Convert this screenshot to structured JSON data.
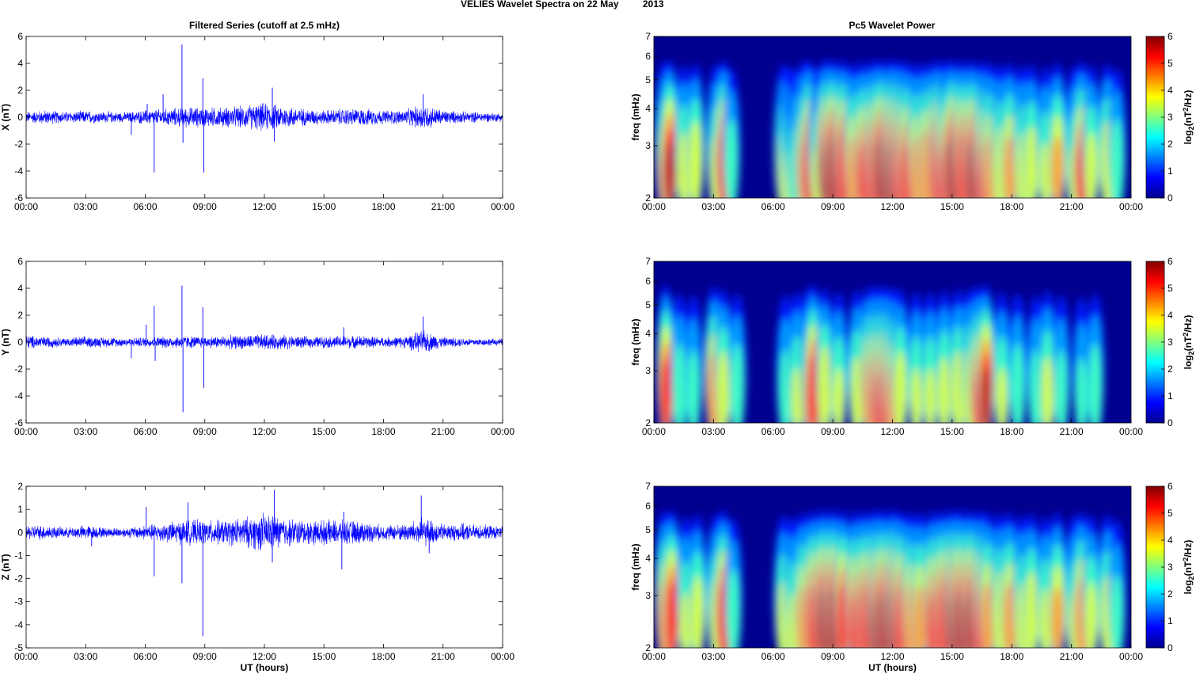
{
  "figure": {
    "title_left": "VELIES Wavelet Spectra on 22 May",
    "title_right": "2013",
    "left_title": "Filtered Series (cutoff at 2.5 mHz)",
    "right_title": "Pc5 Wavelet Power"
  },
  "colors": {
    "series": "#0000ff",
    "background": "#00008f"
  },
  "chart_data": [
    {
      "type": "line",
      "name": "x-series",
      "ylabel": "X (nT)",
      "xlabel": "",
      "xlim": [
        0,
        24
      ],
      "ylim": [
        -6,
        6
      ],
      "yticks": [
        "-6",
        "-4",
        "-2",
        "0",
        "2",
        "4",
        "6"
      ],
      "xticks": [
        "00:00",
        "03:00",
        "06:00",
        "09:00",
        "12:00",
        "15:00",
        "18:00",
        "21:00",
        "00:00"
      ],
      "envelope": [
        [
          0,
          0.4
        ],
        [
          1,
          0.5
        ],
        [
          2,
          0.4
        ],
        [
          3,
          0.45
        ],
        [
          4,
          0.4
        ],
        [
          5,
          0.35
        ],
        [
          6,
          0.5
        ],
        [
          7,
          0.6
        ],
        [
          8,
          0.7
        ],
        [
          9,
          0.7
        ],
        [
          10,
          0.7
        ],
        [
          11,
          0.8
        ],
        [
          12,
          1.0
        ],
        [
          13,
          0.8
        ],
        [
          14,
          0.6
        ],
        [
          15,
          0.5
        ],
        [
          16,
          0.6
        ],
        [
          17,
          0.6
        ],
        [
          18,
          0.5
        ],
        [
          19,
          0.5
        ],
        [
          20,
          0.9
        ],
        [
          21,
          0.5
        ],
        [
          22,
          0.4
        ],
        [
          23,
          0.35
        ],
        [
          24,
          0.3
        ]
      ],
      "spikes": [
        [
          5.3,
          -1.3
        ],
        [
          6.1,
          1.0
        ],
        [
          6.45,
          -4.1
        ],
        [
          6.9,
          1.7
        ],
        [
          7.85,
          5.4
        ],
        [
          7.9,
          -1.9
        ],
        [
          8.9,
          2.9
        ],
        [
          8.95,
          -4.1
        ],
        [
          12.4,
          2.2
        ],
        [
          12.5,
          -1.8
        ],
        [
          20.0,
          1.7
        ]
      ]
    },
    {
      "type": "line",
      "name": "y-series",
      "ylabel": "Y (nT)",
      "xlabel": "",
      "xlim": [
        0,
        24
      ],
      "ylim": [
        -6,
        6
      ],
      "yticks": [
        "-6",
        "-4",
        "-2",
        "0",
        "2",
        "4",
        "6"
      ],
      "xticks": [
        "00:00",
        "03:00",
        "06:00",
        "09:00",
        "12:00",
        "15:00",
        "18:00",
        "21:00",
        "00:00"
      ],
      "envelope": [
        [
          0,
          0.5
        ],
        [
          1,
          0.4
        ],
        [
          2,
          0.3
        ],
        [
          3,
          0.4
        ],
        [
          4,
          0.35
        ],
        [
          5,
          0.3
        ],
        [
          6,
          0.35
        ],
        [
          7,
          0.4
        ],
        [
          8,
          0.45
        ],
        [
          9,
          0.4
        ],
        [
          10,
          0.45
        ],
        [
          11,
          0.5
        ],
        [
          12,
          0.55
        ],
        [
          13,
          0.5
        ],
        [
          14,
          0.4
        ],
        [
          15,
          0.4
        ],
        [
          16,
          0.45
        ],
        [
          17,
          0.45
        ],
        [
          18,
          0.35
        ],
        [
          19,
          0.4
        ],
        [
          20,
          0.8
        ],
        [
          21,
          0.35
        ],
        [
          22,
          0.3
        ],
        [
          23,
          0.25
        ],
        [
          24,
          0.25
        ]
      ],
      "spikes": [
        [
          5.3,
          -1.2
        ],
        [
          6.05,
          1.3
        ],
        [
          6.45,
          2.7
        ],
        [
          6.5,
          -1.4
        ],
        [
          7.85,
          4.2
        ],
        [
          7.9,
          -5.2
        ],
        [
          8.9,
          2.6
        ],
        [
          8.95,
          -3.4
        ],
        [
          16.0,
          1.1
        ],
        [
          20.0,
          1.9
        ]
      ]
    },
    {
      "type": "line",
      "name": "z-series",
      "ylabel": "Z (nT)",
      "xlabel": "UT (hours)",
      "xlim": [
        0,
        24
      ],
      "ylim": [
        -5,
        2
      ],
      "yticks": [
        "-5",
        "-4",
        "-3",
        "-2",
        "-1",
        "0",
        "1",
        "2"
      ],
      "xticks": [
        "00:00",
        "03:00",
        "06:00",
        "09:00",
        "12:00",
        "15:00",
        "18:00",
        "21:00",
        "00:00"
      ],
      "envelope": [
        [
          0,
          0.3
        ],
        [
          1,
          0.3
        ],
        [
          2,
          0.2
        ],
        [
          3,
          0.3
        ],
        [
          4,
          0.2
        ],
        [
          5,
          0.2
        ],
        [
          6,
          0.3
        ],
        [
          7,
          0.4
        ],
        [
          8,
          0.5
        ],
        [
          9,
          0.5
        ],
        [
          10,
          0.5
        ],
        [
          11,
          0.6
        ],
        [
          12,
          0.8
        ],
        [
          13,
          0.6
        ],
        [
          14,
          0.5
        ],
        [
          15,
          0.5
        ],
        [
          16,
          0.5
        ],
        [
          17,
          0.45
        ],
        [
          18,
          0.3
        ],
        [
          19,
          0.35
        ],
        [
          20,
          0.6
        ],
        [
          21,
          0.35
        ],
        [
          22,
          0.35
        ],
        [
          23,
          0.3
        ],
        [
          24,
          0.25
        ]
      ],
      "spikes": [
        [
          3.3,
          -0.6
        ],
        [
          6.05,
          1.1
        ],
        [
          6.45,
          -1.9
        ],
        [
          7.85,
          -2.2
        ],
        [
          8.15,
          1.3
        ],
        [
          8.9,
          -4.5
        ],
        [
          12.5,
          1.85
        ],
        [
          12.4,
          -1.3
        ],
        [
          15.9,
          -1.6
        ],
        [
          16.0,
          0.9
        ],
        [
          19.9,
          1.6
        ],
        [
          20.3,
          -0.9
        ]
      ]
    },
    {
      "type": "heatmap",
      "name": "x-wavelet",
      "ylabel": "freq (mHz)",
      "xlabel": "",
      "xlim": [
        0,
        24
      ],
      "ylim": [
        2,
        7
      ],
      "yscale": "log",
      "yticks": [
        "2",
        "3",
        "4",
        "5",
        "6",
        "7"
      ],
      "xticks": [
        "00:00",
        "03:00",
        "06:00",
        "09:00",
        "12:00",
        "15:00",
        "18:00",
        "21:00",
        "00:00"
      ],
      "clim": [
        0,
        6
      ],
      "colorbar_ticks": [
        "0",
        "1",
        "2",
        "3",
        "4",
        "5",
        "6"
      ],
      "colorbar_label": "log2(nT2/Hz)",
      "blobs": [
        [
          0.5,
          4.5
        ],
        [
          0.8,
          5.6
        ],
        [
          1.5,
          3.8
        ],
        [
          2.1,
          4.2
        ],
        [
          3.1,
          3.8
        ],
        [
          3.5,
          5.5
        ],
        [
          3.9,
          3.2
        ],
        [
          6.5,
          4.0
        ],
        [
          6.8,
          3.5
        ],
        [
          7.1,
          3.0
        ],
        [
          7.5,
          4.8
        ],
        [
          7.8,
          5.5
        ],
        [
          8.2,
          3.5
        ],
        [
          8.6,
          5.8
        ],
        [
          9.0,
          5.9
        ],
        [
          9.5,
          5.5
        ],
        [
          10.0,
          4.5
        ],
        [
          10.5,
          5.0
        ],
        [
          11.0,
          5.5
        ],
        [
          11.4,
          5.8
        ],
        [
          11.9,
          5.8
        ],
        [
          12.3,
          5.5
        ],
        [
          12.7,
          5.0
        ],
        [
          13.2,
          4.5
        ],
        [
          13.7,
          4.8
        ],
        [
          14.2,
          5.5
        ],
        [
          14.6,
          5.0
        ],
        [
          15.0,
          5.8
        ],
        [
          15.5,
          5.5
        ],
        [
          16.0,
          5.6
        ],
        [
          16.5,
          5.0
        ],
        [
          16.9,
          4.5
        ],
        [
          17.4,
          4.0
        ],
        [
          17.9,
          4.5
        ],
        [
          18.5,
          3.8
        ],
        [
          19.0,
          4.0
        ],
        [
          19.7,
          3.5
        ],
        [
          20.3,
          4.5
        ],
        [
          21.1,
          3.5
        ],
        [
          21.5,
          5.0
        ],
        [
          22.0,
          3.8
        ],
        [
          22.8,
          4.2
        ],
        [
          23.3,
          3.2
        ]
      ]
    },
    {
      "type": "heatmap",
      "name": "y-wavelet",
      "ylabel": "freq (mHz)",
      "xlabel": "",
      "xlim": [
        0,
        24
      ],
      "ylim": [
        2,
        7
      ],
      "yscale": "log",
      "yticks": [
        "2",
        "3",
        "4",
        "5",
        "6",
        "7"
      ],
      "xticks": [
        "00:00",
        "03:00",
        "06:00",
        "09:00",
        "12:00",
        "15:00",
        "18:00",
        "21:00",
        "00:00"
      ],
      "clim": [
        0,
        6
      ],
      "colorbar_ticks": [
        "0",
        "1",
        "2",
        "3",
        "4",
        "5",
        "6"
      ],
      "colorbar_label": "log2(nT2/Hz)",
      "blobs": [
        [
          0.6,
          5.4
        ],
        [
          1.3,
          3.2
        ],
        [
          2.0,
          3.0
        ],
        [
          3.0,
          4.8
        ],
        [
          3.5,
          4.0
        ],
        [
          4.2,
          3.2
        ],
        [
          6.6,
          3.0
        ],
        [
          7.2,
          3.5
        ],
        [
          7.8,
          4.5
        ],
        [
          8.0,
          5.5
        ],
        [
          8.6,
          4.2
        ],
        [
          9.3,
          3.5
        ],
        [
          10.2,
          3.8
        ],
        [
          10.8,
          4.8
        ],
        [
          11.2,
          5.0
        ],
        [
          11.6,
          5.0
        ],
        [
          12.0,
          4.5
        ],
        [
          12.4,
          4.0
        ],
        [
          13.2,
          3.5
        ],
        [
          13.9,
          3.5
        ],
        [
          14.6,
          3.8
        ],
        [
          15.3,
          4.0
        ],
        [
          15.9,
          4.2
        ],
        [
          16.3,
          5.0
        ],
        [
          16.7,
          5.6
        ],
        [
          17.5,
          3.5
        ],
        [
          18.3,
          3.2
        ],
        [
          19.2,
          3.0
        ],
        [
          19.8,
          3.8
        ],
        [
          20.5,
          3.0
        ],
        [
          21.5,
          2.8
        ],
        [
          22.2,
          3.2
        ]
      ]
    },
    {
      "type": "heatmap",
      "name": "z-wavelet",
      "ylabel": "freq (mHz)",
      "xlabel": "UT (hours)",
      "xlim": [
        0,
        24
      ],
      "ylim": [
        2,
        7
      ],
      "yscale": "log",
      "yticks": [
        "2",
        "3",
        "4",
        "5",
        "6",
        "7"
      ],
      "xticks": [
        "00:00",
        "03:00",
        "06:00",
        "09:00",
        "12:00",
        "15:00",
        "18:00",
        "21:00",
        "00:00"
      ],
      "clim": [
        0,
        6
      ],
      "colorbar_ticks": [
        "0",
        "1",
        "2",
        "3",
        "4",
        "5",
        "6"
      ],
      "colorbar_label": "log2(nT2/Hz)",
      "blobs": [
        [
          0.5,
          4.8
        ],
        [
          0.9,
          5.5
        ],
        [
          1.6,
          3.5
        ],
        [
          2.2,
          4.0
        ],
        [
          3.1,
          4.0
        ],
        [
          3.5,
          5.4
        ],
        [
          4.0,
          3.2
        ],
        [
          6.5,
          3.8
        ],
        [
          7.0,
          3.5
        ],
        [
          7.5,
          4.5
        ],
        [
          8.0,
          5.3
        ],
        [
          8.5,
          5.8
        ],
        [
          9.0,
          5.8
        ],
        [
          9.5,
          5.3
        ],
        [
          10.1,
          5.0
        ],
        [
          10.6,
          5.3
        ],
        [
          11.1,
          5.6
        ],
        [
          11.5,
          5.6
        ],
        [
          12.0,
          5.8
        ],
        [
          12.4,
          5.2
        ],
        [
          12.9,
          4.6
        ],
        [
          13.4,
          4.5
        ],
        [
          14.0,
          5.0
        ],
        [
          14.5,
          5.4
        ],
        [
          15.0,
          5.8
        ],
        [
          15.4,
          5.6
        ],
        [
          15.9,
          5.6
        ],
        [
          16.4,
          5.3
        ],
        [
          16.8,
          4.6
        ],
        [
          17.4,
          4.2
        ],
        [
          17.9,
          4.6
        ],
        [
          18.5,
          3.8
        ],
        [
          19.0,
          4.2
        ],
        [
          19.7,
          3.6
        ],
        [
          20.3,
          4.5
        ],
        [
          21.1,
          3.6
        ],
        [
          21.5,
          4.8
        ],
        [
          22.0,
          3.8
        ],
        [
          22.8,
          4.0
        ],
        [
          23.3,
          3.0
        ]
      ]
    }
  ]
}
